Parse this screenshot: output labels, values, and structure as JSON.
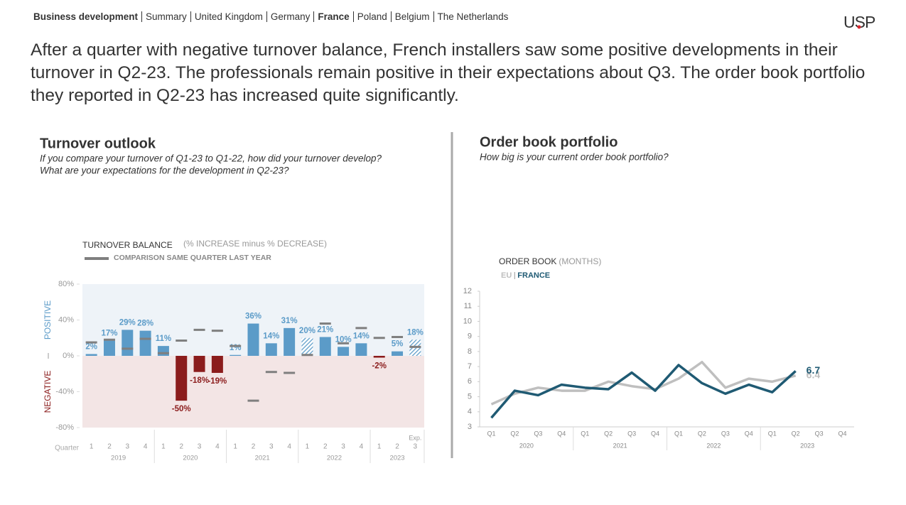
{
  "nav": {
    "section": "Business development",
    "items": [
      "Summary",
      "United Kingdom",
      "Germany",
      "France",
      "Poland",
      "Belgium",
      "The Netherlands"
    ],
    "current": 3
  },
  "logo": "USP",
  "headline": "After a quarter with negative turnover balance, French installers saw some positive developments in their turnover in Q2-23. The professionals remain positive in their expectations about Q3. The order book portfolio they reported in Q2-23 has increased quite significantly.",
  "chart_data": [
    {
      "type": "bar",
      "title": "Turnover outlook",
      "subtitle": [
        "If you compare your turnover of Q1-23 to Q1-22, how did your turnover develop?",
        "What are your expectations for the development in Q2-23?"
      ],
      "legend_title": "TURNOVER BALANCE",
      "legend_note": "(% INCREASE minus % DECREASE)",
      "positive_label": "POSITIVE",
      "negative_label": "NEGATIVE",
      "x_label": "Quarter",
      "expectation_label": "Exp.",
      "categories": [
        "1",
        "2",
        "3",
        "4",
        "1",
        "2",
        "3",
        "4",
        "1",
        "2",
        "3",
        "4",
        "1",
        "2",
        "3",
        "4",
        "1",
        "2",
        "3"
      ],
      "groups": [
        "2019",
        "2020",
        "2021",
        "2022",
        "2023"
      ],
      "group_sizes": [
        4,
        4,
        4,
        4,
        3
      ],
      "hatched_bars": [
        12,
        18
      ],
      "color_positive": "#5b9bc8",
      "color_negative": "#8b1c1c",
      "series": [
        {
          "name": "TURNOVER BALANCE",
          "values": [
            2,
            17,
            29,
            28,
            11,
            -50,
            -18,
            -19,
            1,
            36,
            14,
            31,
            20,
            21,
            10,
            14,
            -2,
            5,
            18
          ],
          "value_labels": [
            "2%",
            "17%",
            "29%",
            "28%",
            "11%",
            "-50%",
            "-18%",
            "-19%",
            "1%",
            "36%",
            "14%",
            "31%",
            "20%",
            "21%",
            "10%",
            "14%",
            "-2%",
            "5%",
            "18%"
          ]
        },
        {
          "name": "COMPARISON SAME QUARTER LAST YEAR",
          "color": "#7f7f7f",
          "values": [
            15,
            18,
            8,
            19,
            3,
            17,
            29,
            28,
            11,
            -50,
            -18,
            -19,
            1,
            36,
            14,
            31,
            20,
            21,
            10
          ]
        }
      ],
      "ylim": [
        -80,
        80
      ],
      "yticks": [
        {
          "value": -80,
          "label": "-80%"
        },
        {
          "value": -40,
          "label": "-40%"
        },
        {
          "value": 0,
          "label": "0%"
        },
        {
          "value": 40,
          "label": "40%"
        },
        {
          "value": 80,
          "label": "80%"
        }
      ]
    },
    {
      "type": "line",
      "title": "Order book portfolio",
      "subtitle": [
        "How big is your current order book portfolio?"
      ],
      "legend_title": "ORDER BOOK",
      "legend_note": "(MONTHS)",
      "categories": [
        "Q1",
        "Q2",
        "Q3",
        "Q4",
        "Q1",
        "Q2",
        "Q3",
        "Q4",
        "Q1",
        "Q2",
        "Q3",
        "Q4",
        "Q1",
        "Q2",
        "Q3",
        "Q4"
      ],
      "groups": [
        "2020",
        "2021",
        "2022",
        "2023"
      ],
      "group_sizes": [
        4,
        4,
        4,
        4
      ],
      "series": [
        {
          "name": "EU",
          "color": "#bfbfbf",
          "values": [
            4.5,
            5.2,
            5.6,
            5.4,
            5.4,
            6.0,
            5.7,
            5.5,
            6.2,
            7.3,
            5.6,
            6.2,
            6.0,
            6.4,
            null,
            null
          ],
          "end_label": "6.4"
        },
        {
          "name": "FRANCE",
          "color": "#1f5a73",
          "values": [
            3.6,
            5.4,
            5.1,
            5.8,
            5.6,
            5.5,
            6.6,
            5.4,
            7.1,
            5.9,
            5.2,
            5.8,
            5.3,
            6.7,
            null,
            null
          ],
          "end_label": "6.7"
        }
      ],
      "ylim": [
        3,
        12
      ],
      "yticks": [
        3,
        4,
        5,
        6,
        7,
        8,
        9,
        10,
        11,
        12
      ]
    }
  ]
}
